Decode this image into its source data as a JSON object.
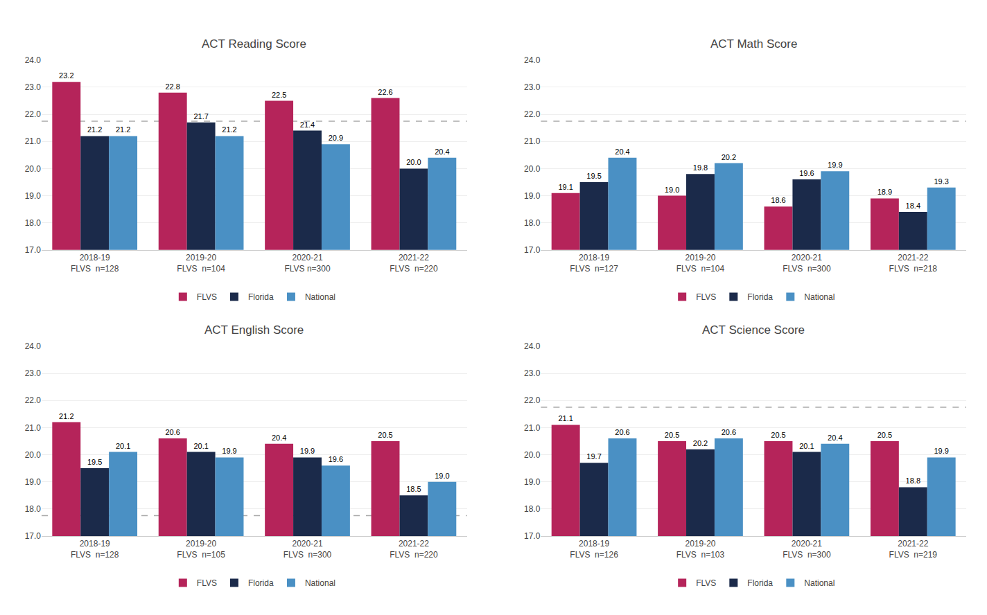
{
  "chart_data": [
    {
      "type": "bar",
      "title": "ACT Reading Score",
      "categories": [
        "2018-19\nFLVS  n=128",
        "2019-20\nFLVS  n=104",
        "2020-21\nFLVS n=300",
        "2021-22\nFLVS  n=220"
      ],
      "series": [
        {
          "name": "FLVS",
          "color": "#B5245A",
          "values": [
            23.2,
            22.8,
            22.5,
            22.6
          ],
          "value_labels": [
            "23.2",
            "22.8",
            "22.5",
            "22.6"
          ]
        },
        {
          "name": "Florida",
          "color": "#1B2A4A",
          "values": [
            21.2,
            21.7,
            21.4,
            20.0
          ],
          "value_labels": [
            "21.2",
            "21.7",
            "21.4",
            "20.0"
          ]
        },
        {
          "name": "National",
          "color": "#4A90C4",
          "values": [
            21.2,
            21.2,
            20.9,
            20.4
          ],
          "value_labels": [
            "21.2",
            "21.2",
            "20.9",
            "20.4"
          ]
        }
      ],
      "ylim": [
        17.0,
        24.0
      ],
      "yticks": [
        {
          "value": 17,
          "label": "17.0"
        },
        {
          "value": 18,
          "label": "18.0"
        },
        {
          "value": 19,
          "label": "19.0"
        },
        {
          "value": 20,
          "label": "20.0"
        },
        {
          "value": 21,
          "label": "21.0"
        },
        {
          "value": 22,
          "label": "22.0"
        },
        {
          "value": 23,
          "label": "23.0"
        },
        {
          "value": 24,
          "label": "24.0"
        }
      ],
      "reference_line": {
        "value": 21.75,
        "color": "#AAAAAA",
        "line_style": "dash"
      },
      "grid": true,
      "legend": "bottom",
      "data_labels": true
    },
    {
      "type": "bar",
      "title": "ACT Math Score",
      "categories": [
        "2018-19\nFLVS  n=127",
        "2019-20\nFLVS  n=104",
        "2020-21\nFLVS  n=300",
        "2021-22\nFLVS  n=218"
      ],
      "series": [
        {
          "name": "FLVS",
          "color": "#B5245A",
          "values": [
            19.1,
            19.0,
            18.6,
            18.9
          ],
          "value_labels": [
            "19.1",
            "19.0",
            "18.6",
            "18.9"
          ]
        },
        {
          "name": "Florida",
          "color": "#1B2A4A",
          "values": [
            19.5,
            19.8,
            19.6,
            18.4
          ],
          "value_labels": [
            "19.5",
            "19.8",
            "19.6",
            "18.4"
          ]
        },
        {
          "name": "National",
          "color": "#4A90C4",
          "values": [
            20.4,
            20.2,
            19.9,
            19.3
          ],
          "value_labels": [
            "20.4",
            "20.2",
            "19.9",
            "19.3"
          ]
        }
      ],
      "ylim": [
        17.0,
        24.0
      ],
      "yticks": [
        {
          "value": 17,
          "label": "17.0"
        },
        {
          "value": 18,
          "label": "18.0"
        },
        {
          "value": 19,
          "label": "19.0"
        },
        {
          "value": 20,
          "label": "20.0"
        },
        {
          "value": 21,
          "label": "21.0"
        },
        {
          "value": 22,
          "label": "22.0"
        },
        {
          "value": 23,
          "label": "23.0"
        },
        {
          "value": 24,
          "label": "24.0"
        }
      ],
      "reference_line": {
        "value": 21.75,
        "color": "#AAAAAA",
        "line_style": "dash"
      },
      "grid": true,
      "legend": "bottom",
      "data_labels": true
    },
    {
      "type": "bar",
      "title": "ACT English Score",
      "categories": [
        "2018-19\nFLVS  n=128",
        "2019-20\nFLVS  n=105",
        "2020-21\nFLVS  n=300",
        "2021-22\nFLVS  n=220"
      ],
      "series": [
        {
          "name": "FLVS",
          "color": "#B5245A",
          "values": [
            21.2,
            20.6,
            20.4,
            20.5
          ],
          "value_labels": [
            "21.2",
            "20.6",
            "20.4",
            "20.5"
          ]
        },
        {
          "name": "Florida",
          "color": "#1B2A4A",
          "values": [
            19.5,
            20.1,
            19.9,
            18.5
          ],
          "value_labels": [
            "19.5",
            "20.1",
            "19.9",
            "18.5"
          ]
        },
        {
          "name": "National",
          "color": "#4A90C4",
          "values": [
            20.1,
            19.9,
            19.6,
            19.0
          ],
          "value_labels": [
            "20.1",
            "19.9",
            "19.6",
            "19.0"
          ]
        }
      ],
      "ylim": [
        17.0,
        24.0
      ],
      "yticks": [
        {
          "value": 17,
          "label": "17.0"
        },
        {
          "value": 18,
          "label": "18.0"
        },
        {
          "value": 19,
          "label": "19.0"
        },
        {
          "value": 20,
          "label": "20.0"
        },
        {
          "value": 21,
          "label": "21.0"
        },
        {
          "value": 22,
          "label": "22.0"
        },
        {
          "value": 23,
          "label": "23.0"
        },
        {
          "value": 24,
          "label": "24.0"
        }
      ],
      "reference_line": {
        "value": 17.75,
        "color": "#AAAAAA",
        "line_style": "dash"
      },
      "grid": true,
      "legend": "bottom",
      "data_labels": true
    },
    {
      "type": "bar",
      "title": "ACT Science Score",
      "categories": [
        "2018-19\nFLVS  n=126",
        "2019-20\nFLVS  n=103",
        "2020-21\nFLVS  n=300",
        "2021-22\nFLVS  n=219"
      ],
      "series": [
        {
          "name": "FLVS",
          "color": "#B5245A",
          "values": [
            21.1,
            20.5,
            20.5,
            20.5
          ],
          "value_labels": [
            "21.1",
            "20.5",
            "20.5",
            "20.5"
          ]
        },
        {
          "name": "Florida",
          "color": "#1B2A4A",
          "values": [
            19.7,
            20.2,
            20.1,
            18.8
          ],
          "value_labels": [
            "19.7",
            "20.2",
            "20.1",
            "18.8"
          ]
        },
        {
          "name": "National",
          "color": "#4A90C4",
          "values": [
            20.6,
            20.6,
            20.4,
            19.9
          ],
          "value_labels": [
            "20.6",
            "20.6",
            "20.4",
            "19.9"
          ]
        }
      ],
      "ylim": [
        17.0,
        24.0
      ],
      "yticks": [
        {
          "value": 17,
          "label": "17.0"
        },
        {
          "value": 18,
          "label": "18.0"
        },
        {
          "value": 19,
          "label": "19.0"
        },
        {
          "value": 20,
          "label": "20.0"
        },
        {
          "value": 21,
          "label": "21.0"
        },
        {
          "value": 22,
          "label": "22.0"
        },
        {
          "value": 23,
          "label": "23.0"
        },
        {
          "value": 24,
          "label": "24.0"
        }
      ],
      "reference_line": {
        "value": 21.75,
        "color": "#AAAAAA",
        "line_style": "dash"
      },
      "grid": true,
      "legend": "bottom",
      "data_labels": true
    }
  ]
}
